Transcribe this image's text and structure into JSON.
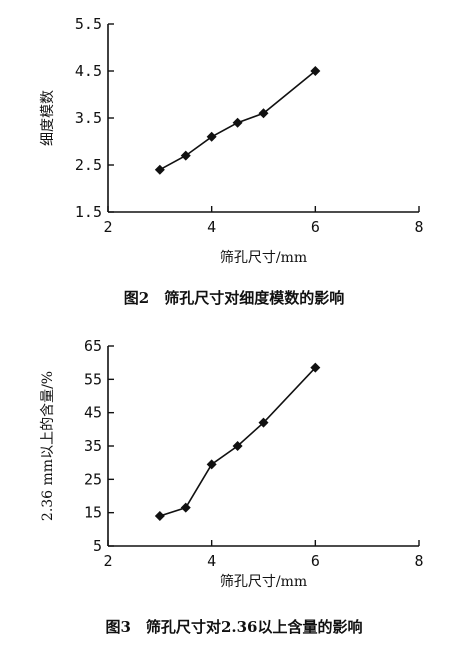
{
  "chart_data": [
    {
      "type": "line",
      "xlabel": "筛孔尺寸/mm",
      "ylabel": "细度模数",
      "caption": "图2　筛孔尺寸对细度模数的影响",
      "xlim": [
        2,
        8
      ],
      "ylim": [
        1.5,
        5.5
      ],
      "xticks": [
        "2",
        "4",
        "6",
        "8"
      ],
      "yticks": [
        "1.5",
        "2.5",
        "3.5",
        "4.5",
        "5.5"
      ],
      "x": [
        3,
        3.5,
        4,
        4.5,
        5,
        6
      ],
      "series": [
        {
          "values": [
            2.4,
            2.7,
            3.1,
            3.4,
            3.6,
            4.5
          ]
        }
      ],
      "grid": false,
      "marker": "diamond"
    },
    {
      "type": "line",
      "xlabel": "筛孔尺寸/mm",
      "ylabel": "2.36 mm以上的含量/%",
      "caption": "图3　筛孔尺寸对2.36以上含量的影响",
      "xlim": [
        2,
        8
      ],
      "ylim": [
        5,
        65
      ],
      "xticks": [
        "2",
        "4",
        "6",
        "8"
      ],
      "yticks": [
        "5",
        "15",
        "25",
        "35",
        "45",
        "55",
        "65"
      ],
      "x": [
        3,
        3.5,
        4,
        4.5,
        5,
        6
      ],
      "series": [
        {
          "values": [
            14,
            16.5,
            29.5,
            35,
            42,
            58.5
          ]
        }
      ],
      "grid": false,
      "marker": "diamond"
    }
  ]
}
